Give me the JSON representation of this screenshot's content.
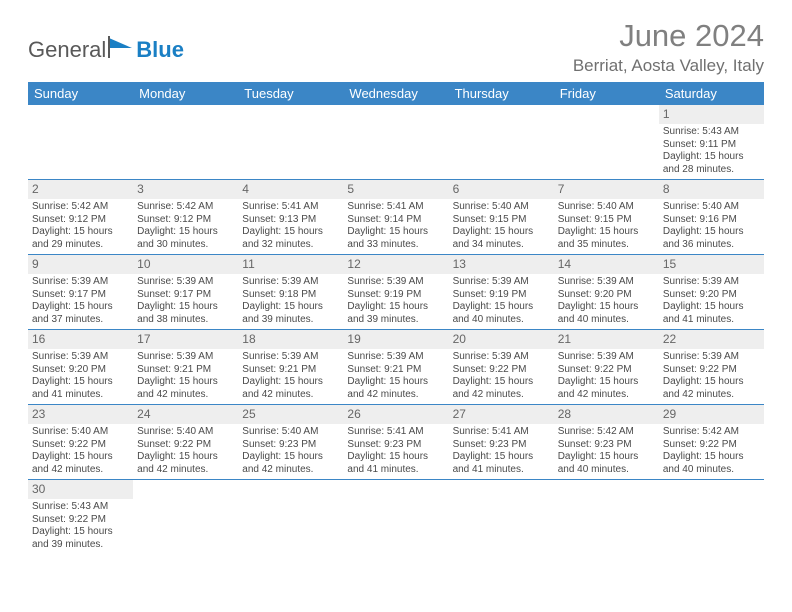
{
  "brand": {
    "part1": "General",
    "part2": "Blue"
  },
  "title": "June 2024",
  "location": "Berriat, Aosta Valley, Italy",
  "colors": {
    "header_bg": "#3b86c6",
    "header_fg": "#ffffff",
    "daynum_bg": "#eeeeee",
    "rule": "#3b86c6",
    "brand_gray": "#595959",
    "brand_blue": "#1a7fc4",
    "title_gray": "#808080"
  },
  "weekdays": [
    "Sunday",
    "Monday",
    "Tuesday",
    "Wednesday",
    "Thursday",
    "Friday",
    "Saturday"
  ],
  "leading_blanks": 6,
  "days": [
    {
      "n": 1,
      "sunrise": "5:43 AM",
      "sunset": "9:11 PM",
      "daylight": "15 hours and 28 minutes."
    },
    {
      "n": 2,
      "sunrise": "5:42 AM",
      "sunset": "9:12 PM",
      "daylight": "15 hours and 29 minutes."
    },
    {
      "n": 3,
      "sunrise": "5:42 AM",
      "sunset": "9:12 PM",
      "daylight": "15 hours and 30 minutes."
    },
    {
      "n": 4,
      "sunrise": "5:41 AM",
      "sunset": "9:13 PM",
      "daylight": "15 hours and 32 minutes."
    },
    {
      "n": 5,
      "sunrise": "5:41 AM",
      "sunset": "9:14 PM",
      "daylight": "15 hours and 33 minutes."
    },
    {
      "n": 6,
      "sunrise": "5:40 AM",
      "sunset": "9:15 PM",
      "daylight": "15 hours and 34 minutes."
    },
    {
      "n": 7,
      "sunrise": "5:40 AM",
      "sunset": "9:15 PM",
      "daylight": "15 hours and 35 minutes."
    },
    {
      "n": 8,
      "sunrise": "5:40 AM",
      "sunset": "9:16 PM",
      "daylight": "15 hours and 36 minutes."
    },
    {
      "n": 9,
      "sunrise": "5:39 AM",
      "sunset": "9:17 PM",
      "daylight": "15 hours and 37 minutes."
    },
    {
      "n": 10,
      "sunrise": "5:39 AM",
      "sunset": "9:17 PM",
      "daylight": "15 hours and 38 minutes."
    },
    {
      "n": 11,
      "sunrise": "5:39 AM",
      "sunset": "9:18 PM",
      "daylight": "15 hours and 39 minutes."
    },
    {
      "n": 12,
      "sunrise": "5:39 AM",
      "sunset": "9:19 PM",
      "daylight": "15 hours and 39 minutes."
    },
    {
      "n": 13,
      "sunrise": "5:39 AM",
      "sunset": "9:19 PM",
      "daylight": "15 hours and 40 minutes."
    },
    {
      "n": 14,
      "sunrise": "5:39 AM",
      "sunset": "9:20 PM",
      "daylight": "15 hours and 40 minutes."
    },
    {
      "n": 15,
      "sunrise": "5:39 AM",
      "sunset": "9:20 PM",
      "daylight": "15 hours and 41 minutes."
    },
    {
      "n": 16,
      "sunrise": "5:39 AM",
      "sunset": "9:20 PM",
      "daylight": "15 hours and 41 minutes."
    },
    {
      "n": 17,
      "sunrise": "5:39 AM",
      "sunset": "9:21 PM",
      "daylight": "15 hours and 42 minutes."
    },
    {
      "n": 18,
      "sunrise": "5:39 AM",
      "sunset": "9:21 PM",
      "daylight": "15 hours and 42 minutes."
    },
    {
      "n": 19,
      "sunrise": "5:39 AM",
      "sunset": "9:21 PM",
      "daylight": "15 hours and 42 minutes."
    },
    {
      "n": 20,
      "sunrise": "5:39 AM",
      "sunset": "9:22 PM",
      "daylight": "15 hours and 42 minutes."
    },
    {
      "n": 21,
      "sunrise": "5:39 AM",
      "sunset": "9:22 PM",
      "daylight": "15 hours and 42 minutes."
    },
    {
      "n": 22,
      "sunrise": "5:39 AM",
      "sunset": "9:22 PM",
      "daylight": "15 hours and 42 minutes."
    },
    {
      "n": 23,
      "sunrise": "5:40 AM",
      "sunset": "9:22 PM",
      "daylight": "15 hours and 42 minutes."
    },
    {
      "n": 24,
      "sunrise": "5:40 AM",
      "sunset": "9:22 PM",
      "daylight": "15 hours and 42 minutes."
    },
    {
      "n": 25,
      "sunrise": "5:40 AM",
      "sunset": "9:23 PM",
      "daylight": "15 hours and 42 minutes."
    },
    {
      "n": 26,
      "sunrise": "5:41 AM",
      "sunset": "9:23 PM",
      "daylight": "15 hours and 41 minutes."
    },
    {
      "n": 27,
      "sunrise": "5:41 AM",
      "sunset": "9:23 PM",
      "daylight": "15 hours and 41 minutes."
    },
    {
      "n": 28,
      "sunrise": "5:42 AM",
      "sunset": "9:23 PM",
      "daylight": "15 hours and 40 minutes."
    },
    {
      "n": 29,
      "sunrise": "5:42 AM",
      "sunset": "9:22 PM",
      "daylight": "15 hours and 40 minutes."
    },
    {
      "n": 30,
      "sunrise": "5:43 AM",
      "sunset": "9:22 PM",
      "daylight": "15 hours and 39 minutes."
    }
  ],
  "labels": {
    "sunrise_prefix": "Sunrise: ",
    "sunset_prefix": "Sunset: ",
    "daylight_prefix": "Daylight: "
  }
}
